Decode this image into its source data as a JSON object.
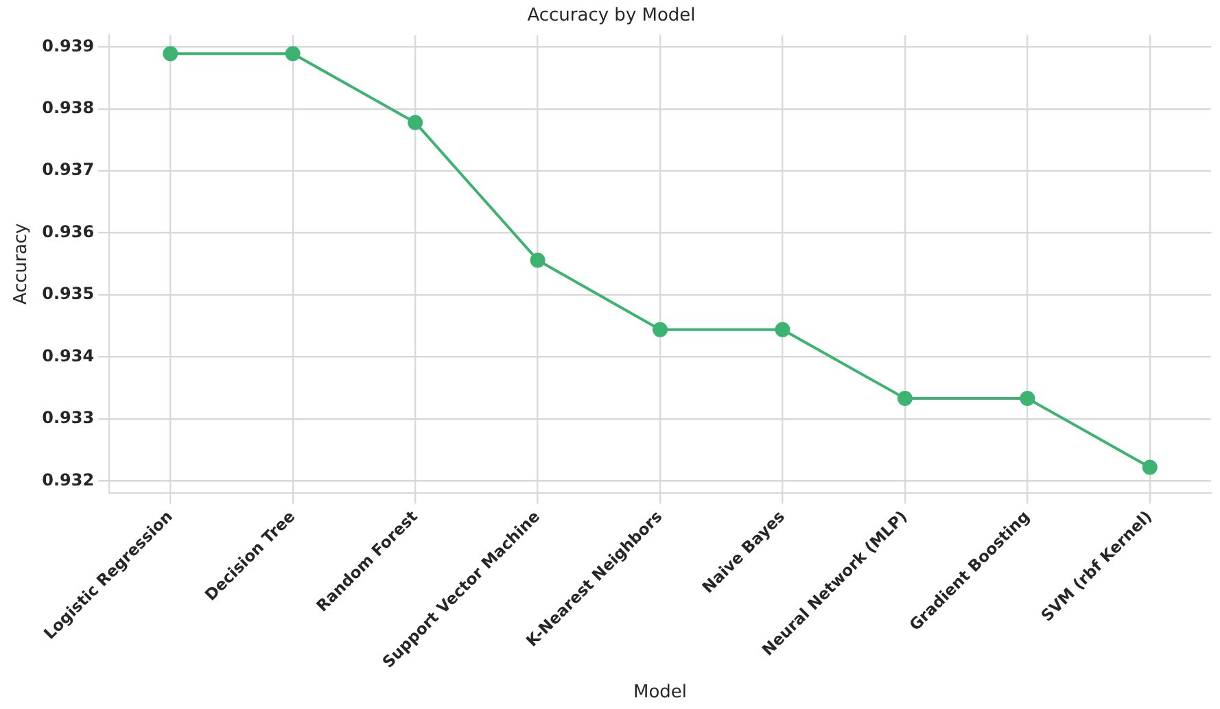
{
  "chart_data": {
    "type": "line",
    "title": "Accuracy by Model",
    "xlabel": "Model",
    "ylabel": "Accuracy",
    "categories": [
      "Logistic Regression",
      "Decision Tree",
      "Random Forest",
      "Support Vector Machine",
      "K-Nearest Neighbors",
      "Naive Bayes",
      "Neural Network (MLP)",
      "Gradient Boosting",
      "SVM (rbf Kernel)"
    ],
    "series": [
      {
        "color": "#3cb371",
        "values": [
          0.93889,
          0.93889,
          0.93778,
          0.93556,
          0.93444,
          0.93444,
          0.93333,
          0.93333,
          0.93222
        ]
      }
    ],
    "ylim": [
      0.93181,
      0.93919
    ],
    "yticks": [
      0.932,
      0.933,
      0.934,
      0.935,
      0.936,
      0.937,
      0.938,
      0.939
    ],
    "grid": true,
    "legend": false,
    "marker": "circle",
    "line_style": "solid"
  }
}
